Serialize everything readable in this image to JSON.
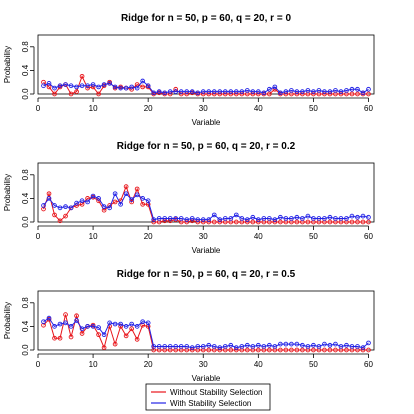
{
  "colors": {
    "without": "#e8141a",
    "with": "#2323e6",
    "axis": "#000000",
    "box": "#000000"
  },
  "legend": {
    "position": "bottom-center",
    "items": [
      {
        "label": "Without Stability Selection",
        "color": "#e8141a"
      },
      {
        "label": "With Stability Selection",
        "color": "#2323e6"
      }
    ]
  },
  "chart_data": [
    {
      "type": "line",
      "title": "Ridge for n = 50, p = 60, q = 20, r = 0",
      "xlabel": "Variable",
      "ylabel": "Probability",
      "xlim": [
        0,
        61
      ],
      "ylim": [
        0,
        1.0
      ],
      "xticks": [
        0,
        10,
        20,
        30,
        40,
        50,
        60
      ],
      "yticks": [
        0.0,
        0.4,
        0.8
      ],
      "grid": false,
      "x": [
        1,
        2,
        3,
        4,
        5,
        6,
        7,
        8,
        9,
        10,
        11,
        12,
        13,
        14,
        15,
        16,
        17,
        18,
        19,
        20,
        21,
        22,
        23,
        24,
        25,
        26,
        27,
        28,
        29,
        30,
        31,
        32,
        33,
        34,
        35,
        36,
        37,
        38,
        39,
        40,
        41,
        42,
        43,
        44,
        45,
        46,
        47,
        48,
        49,
        50,
        51,
        52,
        53,
        54,
        55,
        56,
        57,
        58,
        59,
        60
      ],
      "series": [
        {
          "name": "Without Stability Selection",
          "color": "#e8141a",
          "values": [
            0.2,
            0.12,
            0.0,
            0.12,
            0.16,
            0.0,
            0.04,
            0.3,
            0.1,
            0.12,
            0.0,
            0.14,
            0.2,
            0.1,
            0.12,
            0.1,
            0.08,
            0.16,
            0.12,
            0.12,
            0.0,
            0.02,
            0.0,
            0.0,
            0.08,
            0.0,
            0.0,
            0.02,
            0.0,
            0.0,
            0.0,
            0.0,
            0.0,
            0.0,
            0.0,
            0.0,
            0.0,
            0.0,
            0.0,
            0.0,
            0.0,
            0.0,
            0.08,
            0.0,
            0.0,
            0.0,
            0.0,
            0.0,
            0.0,
            0.0,
            0.0,
            0.0,
            0.0,
            0.0,
            0.0,
            0.0,
            0.0,
            0.0,
            0.0,
            0.0
          ]
        },
        {
          "name": "With Stability Selection",
          "color": "#2323e6",
          "values": [
            0.14,
            0.18,
            0.1,
            0.14,
            0.16,
            0.14,
            0.12,
            0.14,
            0.14,
            0.16,
            0.12,
            0.16,
            0.18,
            0.12,
            0.1,
            0.1,
            0.12,
            0.1,
            0.22,
            0.14,
            0.02,
            0.04,
            0.02,
            0.04,
            0.04,
            0.04,
            0.04,
            0.04,
            0.02,
            0.04,
            0.04,
            0.04,
            0.04,
            0.04,
            0.04,
            0.04,
            0.04,
            0.06,
            0.04,
            0.04,
            0.02,
            0.08,
            0.12,
            0.02,
            0.04,
            0.06,
            0.04,
            0.04,
            0.06,
            0.04,
            0.06,
            0.04,
            0.04,
            0.06,
            0.04,
            0.06,
            0.08,
            0.08,
            0.02,
            0.08
          ]
        }
      ]
    },
    {
      "type": "line",
      "title": "Ridge for n = 50, p = 60, q = 20, r = 0.2",
      "xlabel": "Variable",
      "ylabel": "Probability",
      "xlim": [
        0,
        61
      ],
      "ylim": [
        0,
        1.0
      ],
      "xticks": [
        0,
        10,
        20,
        30,
        40,
        50,
        60
      ],
      "yticks": [
        0.0,
        0.4,
        0.8
      ],
      "grid": false,
      "x": [
        1,
        2,
        3,
        4,
        5,
        6,
        7,
        8,
        9,
        10,
        11,
        12,
        13,
        14,
        15,
        16,
        17,
        18,
        19,
        20,
        21,
        22,
        23,
        24,
        25,
        26,
        27,
        28,
        29,
        30,
        31,
        32,
        33,
        34,
        35,
        36,
        37,
        38,
        39,
        40,
        41,
        42,
        43,
        44,
        45,
        46,
        47,
        48,
        49,
        50,
        51,
        52,
        53,
        54,
        55,
        56,
        57,
        58,
        59,
        60
      ],
      "series": [
        {
          "name": "Without Stability Selection",
          "color": "#e8141a",
          "values": [
            0.22,
            0.48,
            0.12,
            0.02,
            0.1,
            0.24,
            0.28,
            0.3,
            0.4,
            0.42,
            0.36,
            0.2,
            0.28,
            0.34,
            0.36,
            0.6,
            0.34,
            0.56,
            0.3,
            0.3,
            0.0,
            0.0,
            0.02,
            0.02,
            0.04,
            0.0,
            0.0,
            0.02,
            0.0,
            0.0,
            0.0,
            0.0,
            0.0,
            0.0,
            0.0,
            0.0,
            0.0,
            0.0,
            0.0,
            0.0,
            0.0,
            0.0,
            0.0,
            0.0,
            0.0,
            0.0,
            0.0,
            0.0,
            0.0,
            0.0,
            0.0,
            0.0,
            0.0,
            0.0,
            0.0,
            0.0,
            0.0,
            0.0,
            0.0,
            0.0
          ]
        },
        {
          "name": "With Stability Selection",
          "color": "#2323e6",
          "values": [
            0.28,
            0.4,
            0.28,
            0.24,
            0.26,
            0.24,
            0.32,
            0.36,
            0.34,
            0.44,
            0.4,
            0.26,
            0.24,
            0.48,
            0.3,
            0.48,
            0.38,
            0.46,
            0.4,
            0.36,
            0.04,
            0.06,
            0.06,
            0.06,
            0.06,
            0.06,
            0.04,
            0.06,
            0.04,
            0.04,
            0.04,
            0.12,
            0.04,
            0.06,
            0.06,
            0.12,
            0.06,
            0.04,
            0.08,
            0.04,
            0.06,
            0.06,
            0.04,
            0.08,
            0.06,
            0.06,
            0.08,
            0.06,
            0.1,
            0.06,
            0.06,
            0.06,
            0.08,
            0.06,
            0.06,
            0.06,
            0.1,
            0.08,
            0.1,
            0.08
          ]
        }
      ]
    },
    {
      "type": "line",
      "title": "Ridge for n = 50, p = 60, q = 20, r = 0.5",
      "xlabel": "Variable",
      "ylabel": "Probability",
      "xlim": [
        0,
        61
      ],
      "ylim": [
        0,
        1.0
      ],
      "xticks": [
        0,
        10,
        20,
        30,
        40,
        50,
        60
      ],
      "yticks": [
        0.0,
        0.4,
        0.8
      ],
      "grid": false,
      "x": [
        1,
        2,
        3,
        4,
        5,
        6,
        7,
        8,
        9,
        10,
        11,
        12,
        13,
        14,
        15,
        16,
        17,
        18,
        19,
        20,
        21,
        22,
        23,
        24,
        25,
        26,
        27,
        28,
        29,
        30,
        31,
        32,
        33,
        34,
        35,
        36,
        37,
        38,
        39,
        40,
        41,
        42,
        43,
        44,
        45,
        46,
        47,
        48,
        49,
        50,
        51,
        52,
        53,
        54,
        55,
        56,
        57,
        58,
        59,
        60
      ],
      "series": [
        {
          "name": "Without Stability Selection",
          "color": "#e8141a",
          "values": [
            0.42,
            0.52,
            0.2,
            0.2,
            0.6,
            0.22,
            0.58,
            0.28,
            0.4,
            0.42,
            0.26,
            0.04,
            0.4,
            0.1,
            0.4,
            0.24,
            0.36,
            0.18,
            0.42,
            0.4,
            0.0,
            0.0,
            0.0,
            0.0,
            0.0,
            0.0,
            0.0,
            0.0,
            0.0,
            0.0,
            0.0,
            0.0,
            0.0,
            0.0,
            0.0,
            0.0,
            0.0,
            0.0,
            0.0,
            0.0,
            0.0,
            0.0,
            0.0,
            0.0,
            0.0,
            0.0,
            0.0,
            0.0,
            0.0,
            0.0,
            0.0,
            0.0,
            0.0,
            0.0,
            0.0,
            0.0,
            0.0,
            0.0,
            0.0,
            0.0
          ]
        },
        {
          "name": "With Stability Selection",
          "color": "#2323e6",
          "values": [
            0.48,
            0.54,
            0.4,
            0.44,
            0.46,
            0.4,
            0.5,
            0.36,
            0.4,
            0.4,
            0.38,
            0.26,
            0.46,
            0.44,
            0.44,
            0.4,
            0.44,
            0.4,
            0.48,
            0.46,
            0.06,
            0.06,
            0.06,
            0.06,
            0.06,
            0.06,
            0.06,
            0.04,
            0.06,
            0.06,
            0.08,
            0.06,
            0.04,
            0.06,
            0.08,
            0.04,
            0.06,
            0.08,
            0.06,
            0.08,
            0.06,
            0.08,
            0.06,
            0.1,
            0.1,
            0.1,
            0.1,
            0.08,
            0.06,
            0.08,
            0.06,
            0.1,
            0.08,
            0.1,
            0.06,
            0.08,
            0.06,
            0.06,
            0.04,
            0.12
          ]
        }
      ]
    }
  ]
}
